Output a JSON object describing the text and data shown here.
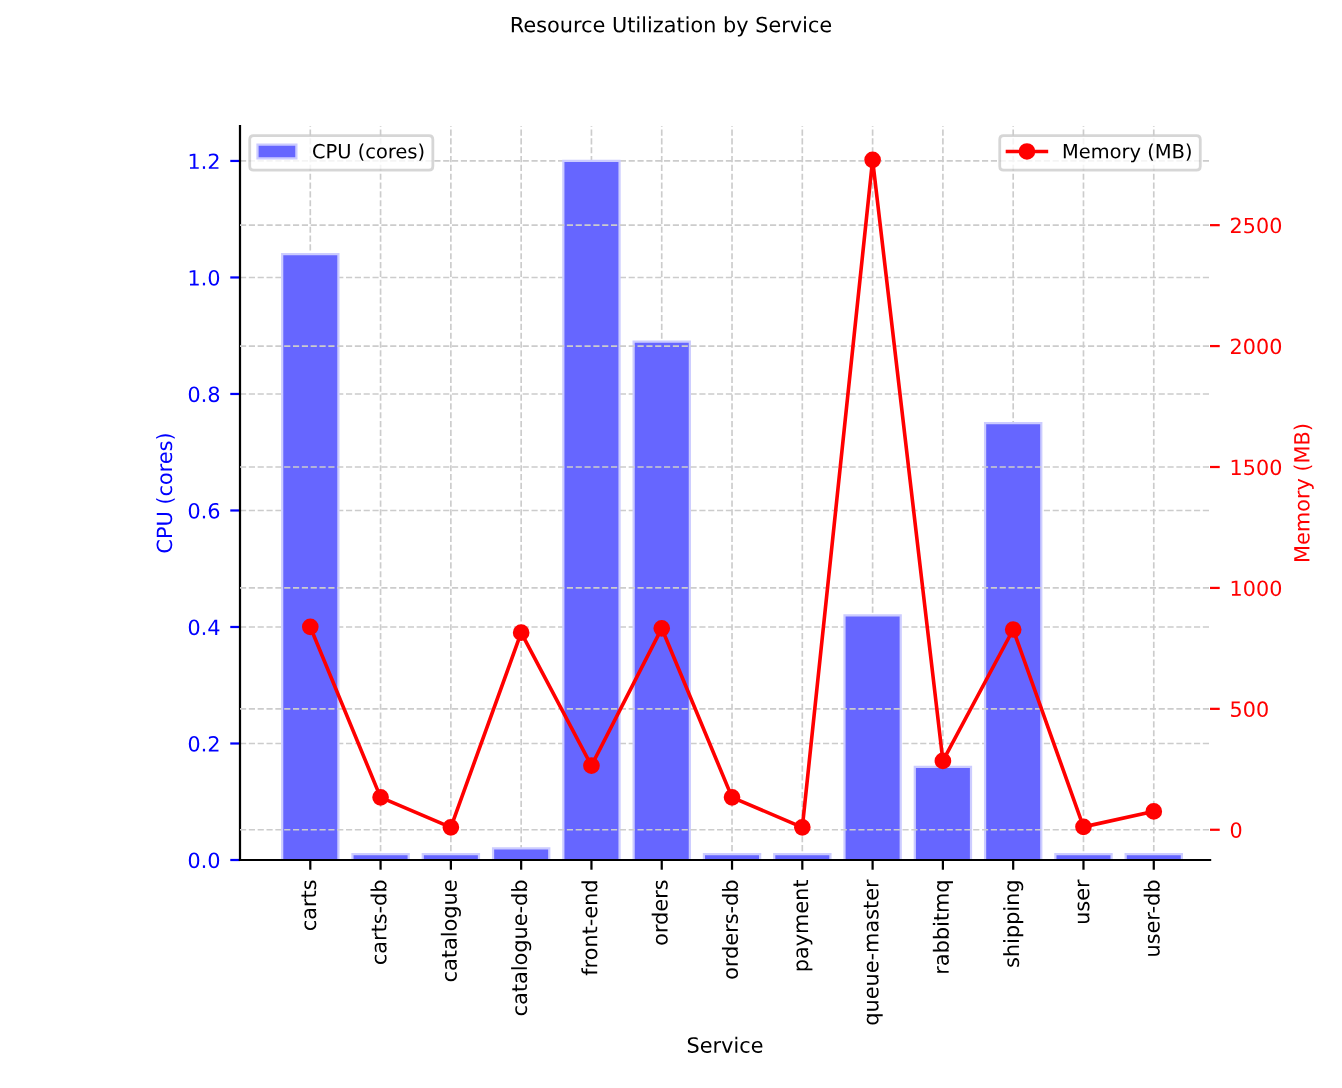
{
  "chart_data": {
    "type": "bar",
    "title": "Resource Utilization by Service",
    "xlabel": "Service",
    "ylabel": "CPU (cores)",
    "y2label": "Memory (MB)",
    "categories": [
      "carts",
      "carts-db",
      "catalogue",
      "catalogue-db",
      "front-end",
      "orders",
      "orders-db",
      "payment",
      "queue-master",
      "rabbitmq",
      "shipping",
      "user",
      "user-db"
    ],
    "series": [
      {
        "name": "CPU (cores)",
        "color": "#6666ff",
        "values": [
          1.04,
          0.01,
          0.01,
          0.02,
          1.2,
          0.89,
          0.01,
          0.01,
          0.42,
          0.16,
          0.75,
          0.01,
          0.01
        ]
      },
      {
        "name": "Memory (MB)",
        "type": "line",
        "axis": "y2",
        "color": "#ff0000",
        "marker": "circle",
        "values": [
          839,
          134,
          10,
          815,
          265,
          833,
          134,
          10,
          2770,
          285,
          828,
          12,
          76
        ]
      }
    ],
    "ylim": [
      0,
      1.26
    ],
    "yticks": [
      {
        "value": 0,
        "label": "0.0"
      },
      {
        "value": 0.2,
        "label": "0.2"
      },
      {
        "value": 0.4,
        "label": "0.4"
      },
      {
        "value": 0.6,
        "label": "0.6"
      },
      {
        "value": 0.8,
        "label": "0.8"
      },
      {
        "value": 1,
        "label": "1.0"
      },
      {
        "value": 1.2,
        "label": "1.2"
      }
    ],
    "y2lim": [
      -125,
      2910
    ],
    "y2ticks": [
      0,
      500,
      1000,
      1500,
      2000,
      2500
    ],
    "grid": true,
    "legend": "top",
    "line_style": "solid"
  }
}
